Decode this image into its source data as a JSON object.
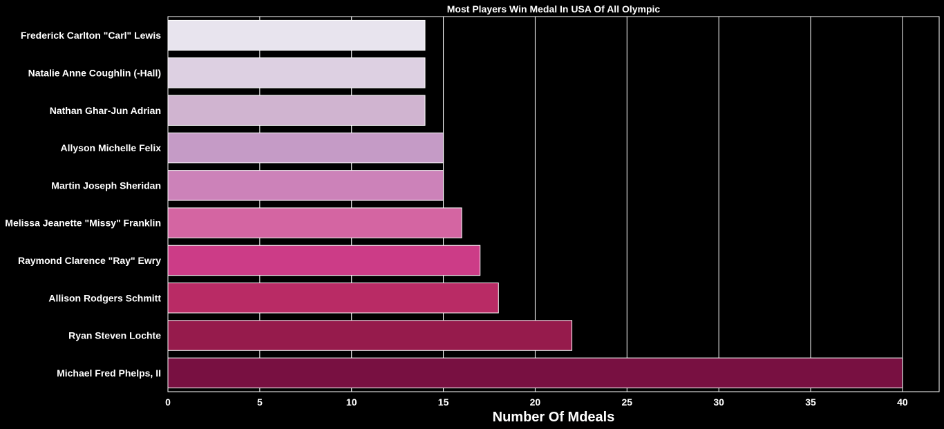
{
  "chart_data": {
    "type": "bar",
    "orientation": "horizontal",
    "title": "Most Players Win Medal In USA Of All Olympic",
    "xlabel": "Number Of Mdeals",
    "ylabel": "",
    "xlim": [
      0,
      42
    ],
    "xticks": [
      0,
      5,
      10,
      15,
      20,
      25,
      30,
      35,
      40
    ],
    "grid": true,
    "categories": [
      "Frederick Carlton \"Carl\" Lewis",
      "Natalie Anne Coughlin (-Hall)",
      "Nathan Ghar-Jun Adrian",
      "Allyson Michelle Felix",
      "Martin Joseph Sheridan",
      "Melissa Jeanette \"Missy\" Franklin",
      "Raymond Clarence \"Ray\" Ewry",
      "Allison Rodgers Schmitt",
      "Ryan Steven Lochte",
      "Michael Fred Phelps, II"
    ],
    "values": [
      14,
      14,
      14,
      15,
      15,
      16,
      17,
      18,
      22,
      40
    ],
    "colors": [
      "#e8e4ee",
      "#ddd0e2",
      "#d0b4d0",
      "#c59bc6",
      "#cc82b9",
      "#d465a2",
      "#cc3c87",
      "#b92b65",
      "#961b4c",
      "#781041"
    ]
  }
}
